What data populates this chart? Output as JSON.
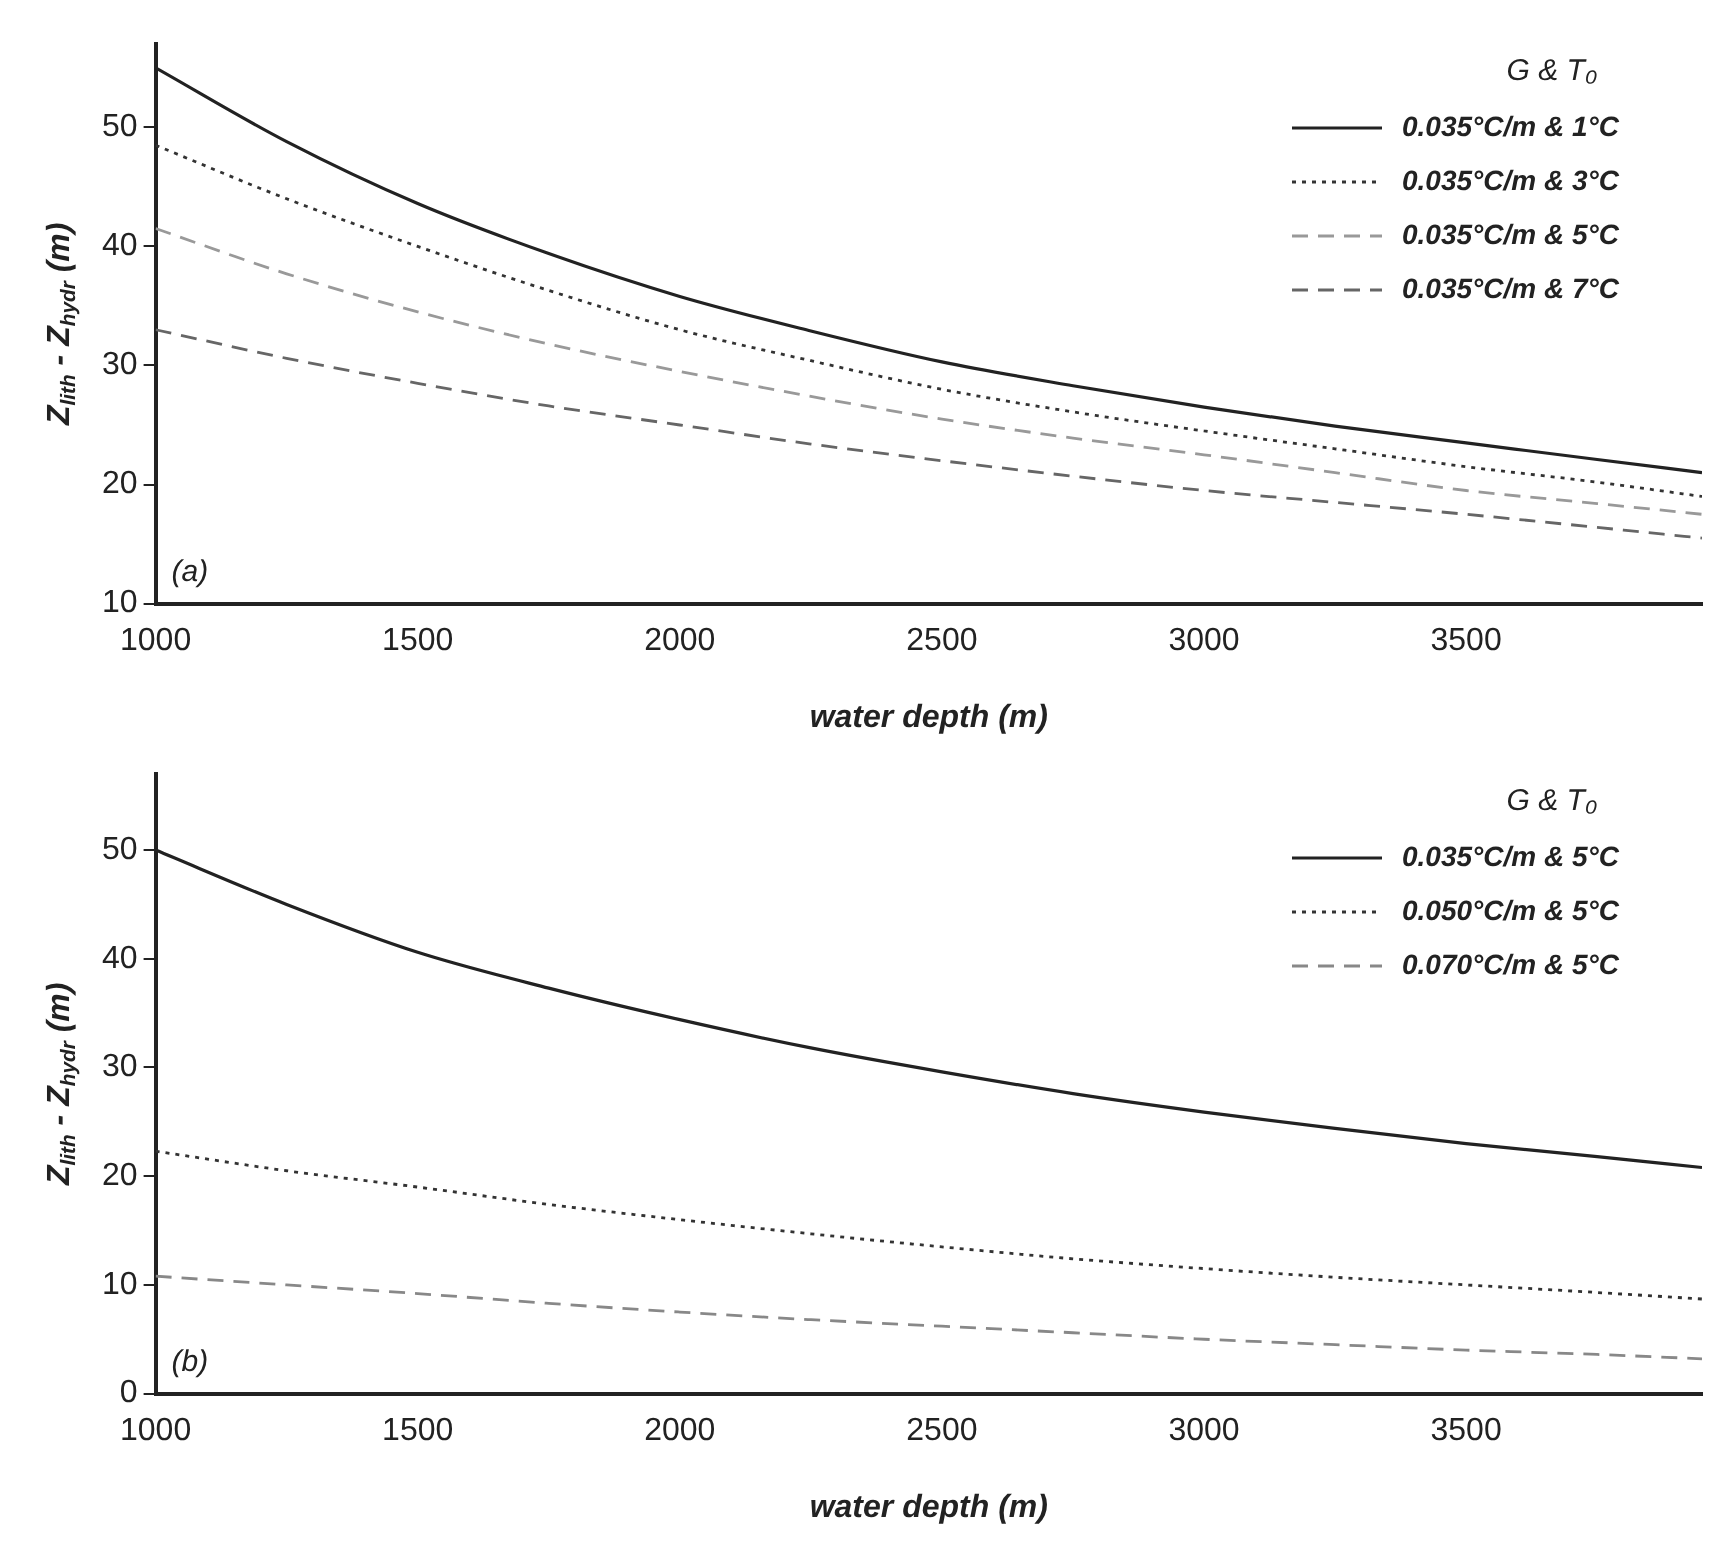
{
  "chart_data": [
    {
      "type": "line",
      "xlabel": "water depth (m)",
      "ylabel": "Z$_{lith}$ - Z$_{hydr}$ (m)",
      "legend_title": "G & T₀",
      "annotations": [
        "(a)"
      ],
      "x": [
        1000,
        1250,
        1500,
        1750,
        2000,
        2250,
        2500,
        2750,
        3000,
        3250,
        3500,
        3750,
        3950
      ],
      "series": [
        {
          "name": "0.035°C/m & 1°C",
          "color": "#222222",
          "line_style": "solid",
          "values": [
            55,
            48.8,
            43.6,
            39.4,
            35.8,
            32.9,
            30.3,
            28.3,
            26.5,
            24.9,
            23.5,
            22.1,
            21
          ]
        },
        {
          "name": "0.035°C/m & 3°C",
          "color": "#333333",
          "line_style": "dotted",
          "values": [
            48.5,
            44,
            40,
            36.3,
            33,
            30.4,
            28,
            26.1,
            24.5,
            23,
            21.5,
            20.2,
            19
          ]
        },
        {
          "name": "0.035°C/m & 5°C",
          "color": "#999999",
          "line_style": "dashed",
          "values": [
            41.5,
            37.7,
            34.5,
            31.8,
            29.5,
            27.4,
            25.5,
            23.9,
            22.5,
            21,
            19.5,
            18.4,
            17.5
          ]
        },
        {
          "name": "0.035°C/m & 7°C",
          "color": "#666666",
          "line_style": "dashed",
          "values": [
            33,
            30.6,
            28.5,
            26.6,
            25,
            23.4,
            22,
            20.7,
            19.5,
            18.5,
            17.5,
            16.4,
            15.5
          ]
        }
      ],
      "xlim": [
        1000,
        3950
      ],
      "xticks": [
        1000,
        1500,
        2000,
        2500,
        3000,
        3500
      ],
      "ylim": [
        10,
        57
      ],
      "yticks": [
        10,
        20,
        30,
        40,
        50
      ],
      "grid": false,
      "legend": "top right",
      "marker": "none"
    },
    {
      "type": "line",
      "xlabel": "water depth (m)",
      "ylabel": "Z$_{lith}$ - Z$_{hydr}$ (m)",
      "legend_title": "G & T₀",
      "annotations": [
        "(b)"
      ],
      "x": [
        1000,
        1250,
        1500,
        1750,
        2000,
        2250,
        2500,
        2750,
        3000,
        3250,
        3500,
        3750,
        3950
      ],
      "series": [
        {
          "name": "0.035°C/m & 5°C",
          "color": "#222222",
          "line_style": "solid",
          "values": [
            50,
            45,
            40.6,
            37.3,
            34.4,
            31.8,
            29.6,
            27.6,
            25.9,
            24.4,
            23,
            21.8,
            20.8
          ]
        },
        {
          "name": "0.050°C/m & 5°C",
          "color": "#333333",
          "line_style": "dotted",
          "values": [
            22.3,
            20.5,
            19,
            17.4,
            16,
            14.7,
            13.5,
            12.4,
            11.5,
            10.7,
            10,
            9.3,
            8.7
          ]
        },
        {
          "name": "0.070°C/m & 5°C",
          "color": "#888888",
          "line_style": "dashed",
          "values": [
            10.8,
            10,
            9.2,
            8.3,
            7.5,
            6.8,
            6.2,
            5.6,
            5,
            4.5,
            4,
            3.6,
            3.2
          ]
        }
      ],
      "xlim": [
        1000,
        3950
      ],
      "xticks": [
        1000,
        1500,
        2000,
        2500,
        3000,
        3500
      ],
      "ylim": [
        0,
        57
      ],
      "yticks": [
        0,
        10,
        20,
        30,
        40,
        50
      ],
      "grid": false,
      "legend": "top right",
      "marker": "none"
    }
  ]
}
